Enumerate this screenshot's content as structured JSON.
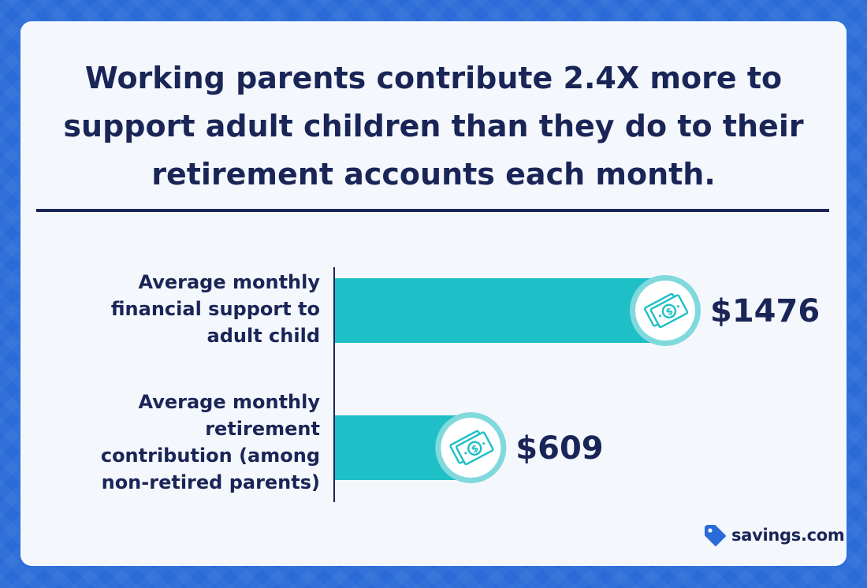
{
  "title": "Working parents contribute 2.4X more to support adult children than they do to their retirement accounts each month.",
  "brand": {
    "name": "savings.com",
    "icon": "tag-icon",
    "icon_color": "#2a6bd8"
  },
  "colors": {
    "background": "#2a6bd8",
    "card": "#f4f7fc",
    "text": "#1a2557",
    "bar": "#1ebfc6",
    "badge_ring": "#7fd9dd",
    "money_icon": "#1ebfc6"
  },
  "chart_data": {
    "type": "bar",
    "orientation": "horizontal",
    "categories": [
      "Average monthly financial support to adult child",
      "Average monthly retirement contribution (among non-retired parents)"
    ],
    "values": [
      1476,
      609
    ],
    "value_labels": [
      "$1476",
      "$609"
    ],
    "title": "Working parents contribute 2.4X more to support adult children than they do to their retirement accounts each month.",
    "xlabel": "",
    "ylabel": "",
    "grid": false,
    "legend": "none",
    "icon": "money-icon"
  }
}
